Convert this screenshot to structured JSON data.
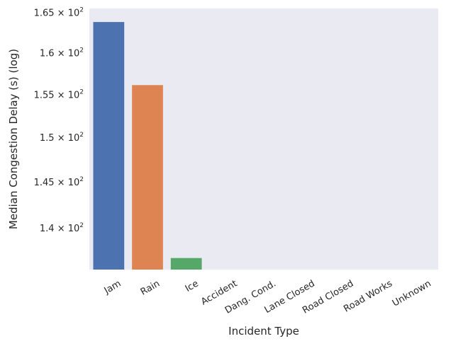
{
  "chart_data": {
    "type": "bar",
    "xlabel": "Incident Type",
    "ylabel": "Median Congestion Delay (s) (log)",
    "y_scale": "log",
    "ylim": [
      135.6,
      165.5
    ],
    "grid": false,
    "categories": [
      "Jam",
      "Rain",
      "Ice",
      "Accident",
      "Dang. Cond.",
      "Lane Closed",
      "Road Closed",
      "Road Works",
      "Unknown"
    ],
    "values": [
      163.8,
      156.1,
      136.8,
      null,
      null,
      null,
      null,
      null,
      null
    ],
    "colors": [
      "#4c72b0",
      "#dd8452",
      "#55a868",
      "#c44e52",
      "#8172b3",
      "#937860",
      "#da8bc3",
      "#8c8c8c",
      "#ccb974"
    ],
    "ytick_values": [
      140,
      145,
      150,
      155,
      160,
      165
    ],
    "ytick_mantissas": [
      "1.4",
      "1.45",
      "1.5",
      "1.55",
      "1.6",
      "1.65"
    ],
    "ytick_base": "× 10",
    "ytick_exponent": "2",
    "background_color": "#eaeaf2"
  }
}
